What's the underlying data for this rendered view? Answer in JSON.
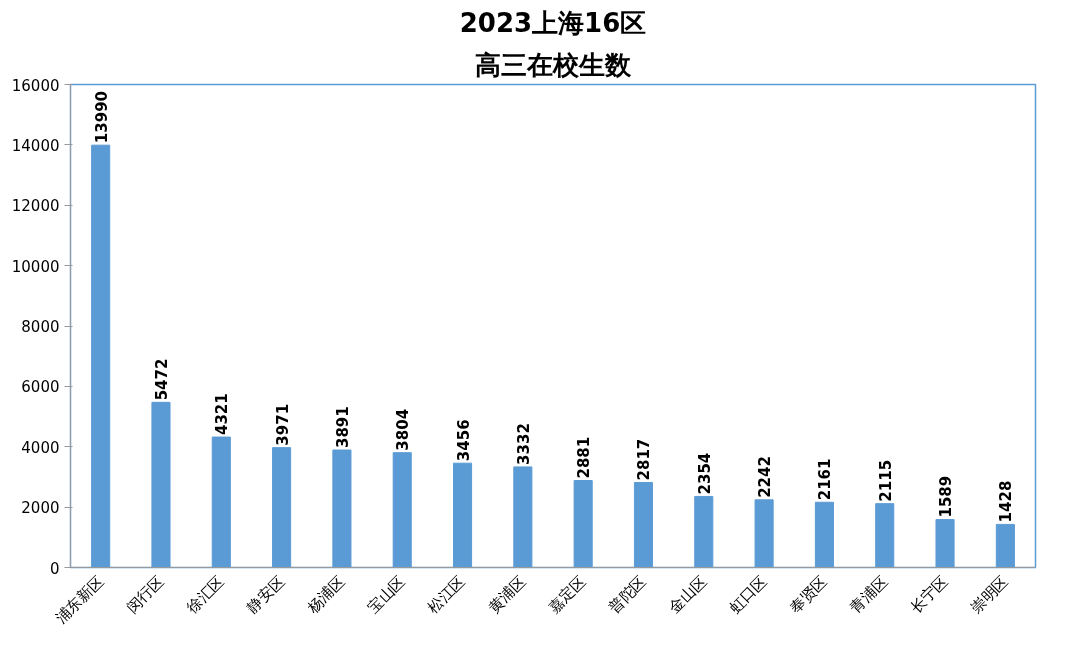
{
  "chart_data": {
    "type": "bar",
    "title": "2023上海16区",
    "subtitle": "高三在校生数",
    "categories": [
      "浦东新区",
      "闵行区",
      "徐汇区",
      "静安区",
      "杨浦区",
      "宝山区",
      "松江区",
      "黄浦区",
      "嘉定区",
      "普陀区",
      "金山区",
      "虹口区",
      "奉贤区",
      "青浦区",
      "长宁区",
      "崇明区"
    ],
    "values": [
      13990,
      5472,
      4321,
      3971,
      3891,
      3804,
      3456,
      3332,
      2881,
      2817,
      2354,
      2242,
      2161,
      2115,
      1589,
      1428
    ],
    "color": "#5b9bd5",
    "ylim": [
      0,
      16000
    ],
    "yticks": [
      0,
      2000,
      4000,
      6000,
      8000,
      10000,
      12000,
      14000,
      16000
    ],
    "grid": false,
    "data_labels": true
  }
}
